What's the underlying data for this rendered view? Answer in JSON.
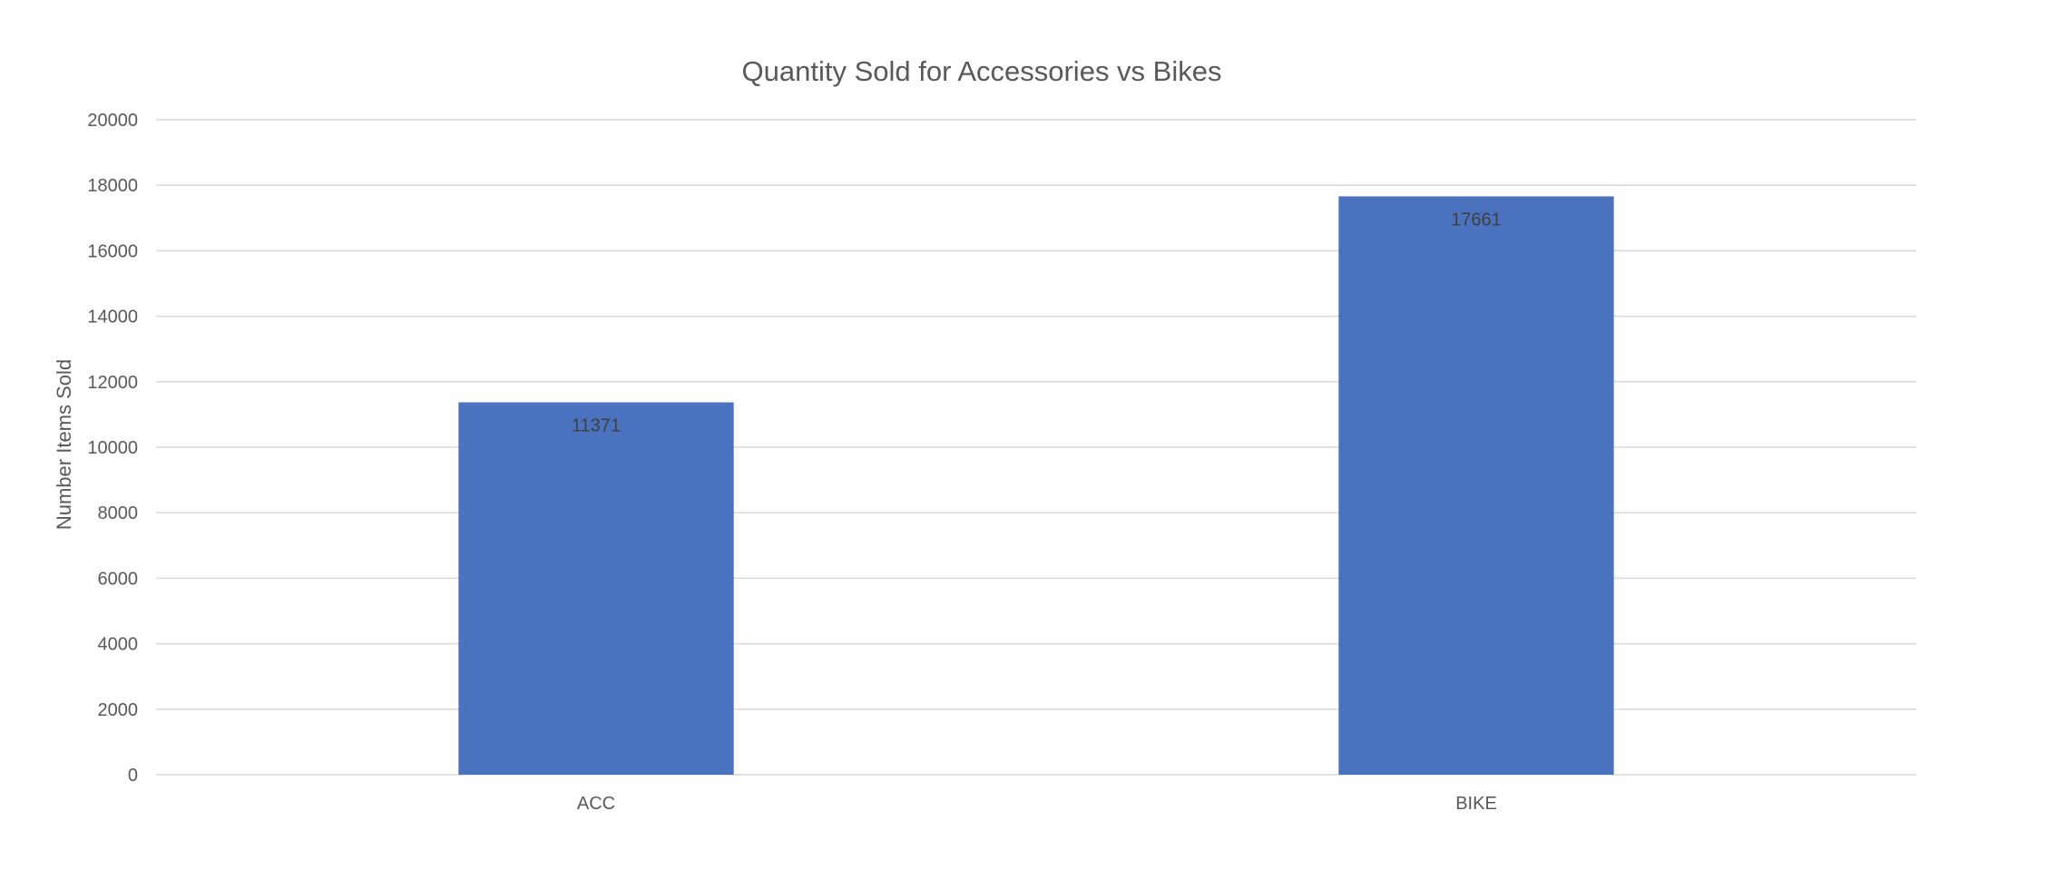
{
  "chart_data": {
    "type": "bar",
    "title": "Quantity Sold for Accessories vs Bikes",
    "xlabel": "",
    "ylabel": "Number Items Sold",
    "categories": [
      "ACC",
      "BIKE"
    ],
    "values": [
      11371,
      17661
    ],
    "data_labels": [
      "11371",
      "17661"
    ],
    "ylim": [
      0,
      20000
    ],
    "yticks": [
      "0",
      "2000",
      "4000",
      "6000",
      "8000",
      "10000",
      "12000",
      "14000",
      "16000",
      "18000",
      "20000"
    ],
    "grid": true,
    "legend": "none",
    "colors": {
      "bar": "#4a72bf"
    }
  }
}
